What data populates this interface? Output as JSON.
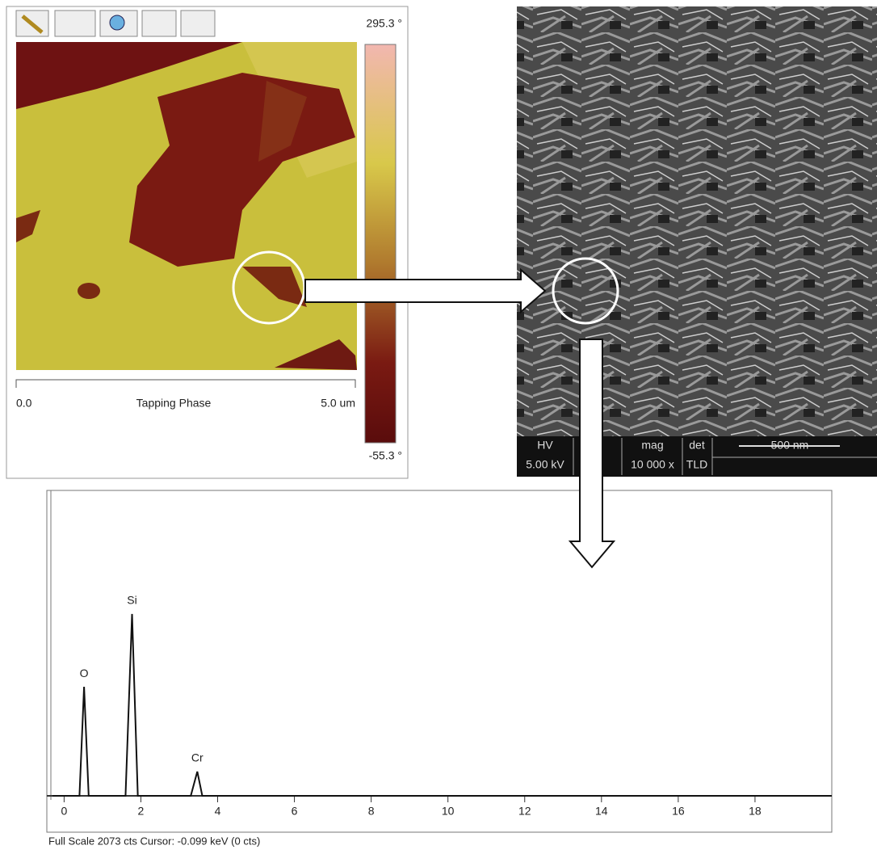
{
  "afm": {
    "scale_max": "295.3 °",
    "scale_min": "-55.3 °",
    "axis_start": "0.0",
    "axis_title": "Tapping Phase",
    "axis_end": "5.0 um"
  },
  "sem": {
    "hv_label": "HV",
    "hv_value": "5.00 kV",
    "mag_label": "mag",
    "mag_value": "10 000 x",
    "det_label": "det",
    "det_value": "TLD",
    "scale_bar": "500 nm"
  },
  "chart_data": {
    "type": "line",
    "footer": "Full Scale 2073 cts  Cursor: -0.099 keV (0 cts)",
    "x": [
      -0.3,
      0.4,
      0.52,
      0.64,
      1.6,
      1.77,
      1.92,
      3.3,
      3.47,
      3.6,
      20
    ],
    "values": [
      0,
      0,
      746,
      0,
      0,
      1244,
      0,
      0,
      166,
      0,
      0
    ],
    "color": "#111111",
    "peak_labels": [
      {
        "text": "O",
        "index": 2
      },
      {
        "text": "Si",
        "index": 5
      },
      {
        "text": "Cr",
        "index": 8
      }
    ],
    "xlim": [
      -0.45,
      20
    ],
    "ylim": [
      0,
      2073
    ],
    "xticks": [
      0,
      2,
      4,
      6,
      8,
      10,
      12,
      14,
      16,
      18
    ]
  }
}
